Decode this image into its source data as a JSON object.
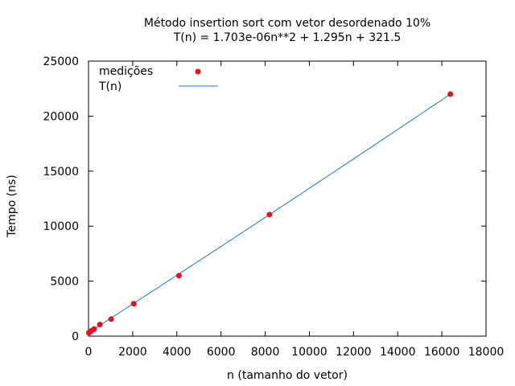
{
  "chart_data": {
    "type": "scatter",
    "title": "Método insertion sort com vetor desordenado 10%",
    "subtitle": "T(n) = 1.703e-06n**2 + 1.295n + 321.5",
    "xlabel": "n (tamanho do vetor)",
    "ylabel": "Tempo (ns)",
    "xlim": [
      0,
      18000
    ],
    "ylim": [
      0,
      25000
    ],
    "xticks": [
      "0",
      "2000",
      "4000",
      "6000",
      "8000",
      "10000",
      "12000",
      "14000",
      "16000",
      "18000"
    ],
    "yticks": [
      "0",
      "5000",
      "10000",
      "15000",
      "20000",
      "25000"
    ],
    "grid": false,
    "legend_position": "top-left",
    "series": [
      {
        "name": "medições",
        "kind": "points",
        "color": "#e8101b",
        "x": [
          16,
          32,
          64,
          128,
          256,
          512,
          1024,
          2048,
          4096,
          8192,
          16384
        ],
        "y": [
          300,
          340,
          380,
          480,
          650,
          1050,
          1550,
          2950,
          5500,
          11050,
          22000
        ]
      },
      {
        "name": "T(n)",
        "kind": "line",
        "color": "#1a7ac0",
        "coefficients": {
          "a": 1.703e-06,
          "b": 1.295,
          "c": 321.5
        },
        "x": [
          0,
          16400
        ]
      }
    ]
  }
}
